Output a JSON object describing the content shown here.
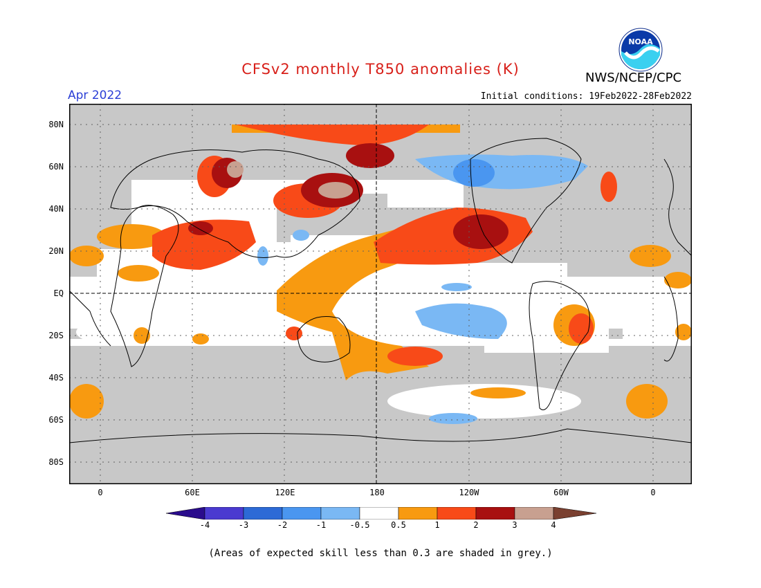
{
  "header": {
    "title": "CFSv2 monthly T850 anomalies (K)",
    "month": "Apr 2022",
    "initial_conditions": "Initial conditions: 19Feb2022-28Feb2022",
    "organization": "NWS/NCEP/CPC",
    "logo_text": "NOAA"
  },
  "map": {
    "lat_labels": [
      "80N",
      "60N",
      "40N",
      "20N",
      "EQ",
      "20S",
      "40S",
      "60S",
      "80S"
    ],
    "lon_labels": [
      "0",
      "60E",
      "120E",
      "180",
      "120W",
      "60W",
      "0"
    ],
    "skill_shade_color": "#c8c8c8"
  },
  "colorbar": {
    "ticks": [
      "-4",
      "-3",
      "-2",
      "-1",
      "-0.5",
      "0.5",
      "1",
      "2",
      "3",
      "4"
    ],
    "colors": [
      "#2a0c8c",
      "#4a3ad0",
      "#2d6ad6",
      "#4a96f0",
      "#7ab8f4",
      "#ffffff",
      "#f89a10",
      "#f84a18",
      "#a81010",
      "#c8a090",
      "#7a4030"
    ]
  },
  "footnote": "(Areas of expected skill less than 0.3 are shaded in grey.)"
}
